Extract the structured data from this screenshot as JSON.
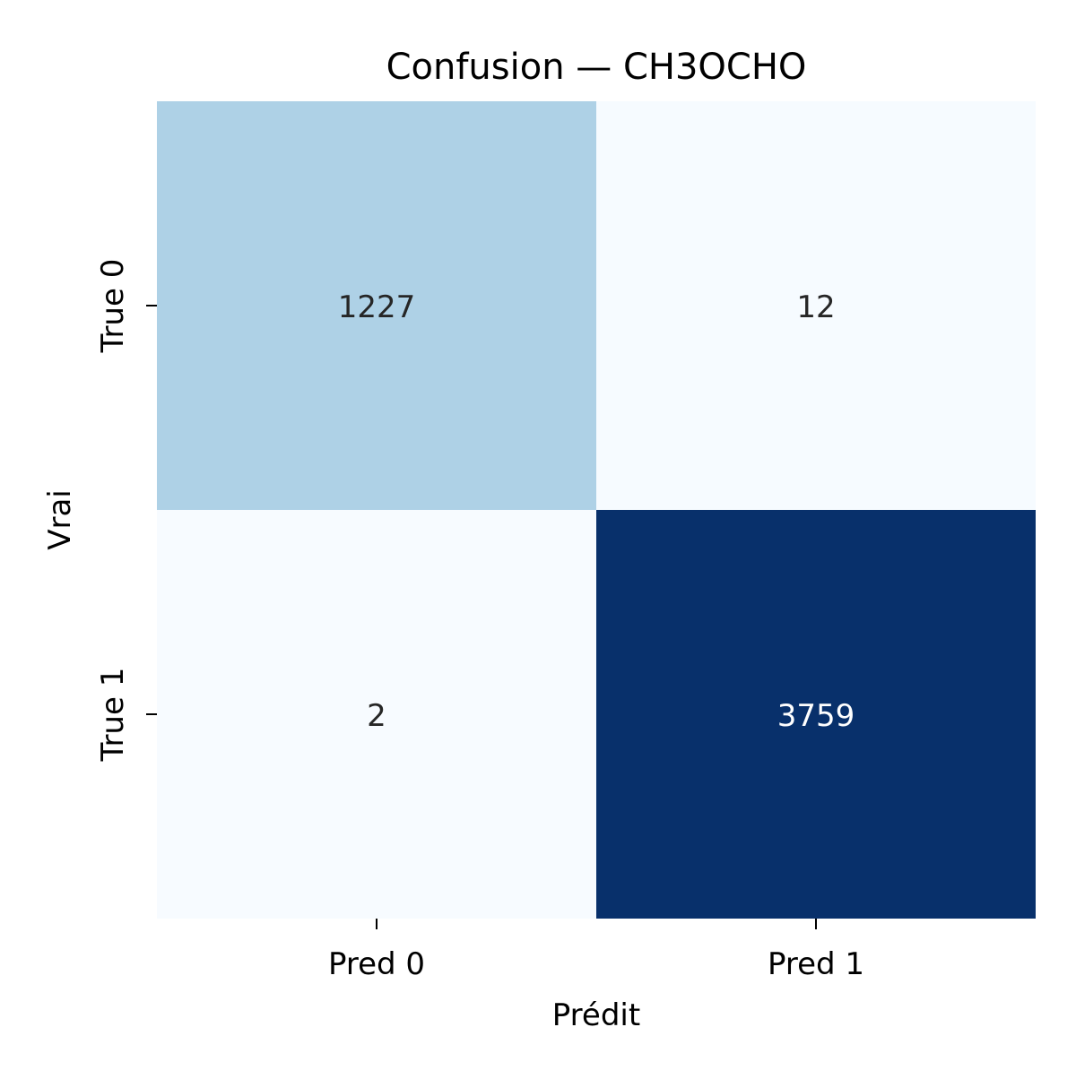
{
  "chart_data": {
    "type": "heatmap",
    "title": "Confusion — CH3OCHO",
    "xlabel": "Prédit",
    "ylabel": "Vrai",
    "x_categories": [
      "Pred 0",
      "Pred 1"
    ],
    "y_categories": [
      "True 0",
      "True 1"
    ],
    "values": [
      [
        1227,
        12
      ],
      [
        2,
        3759
      ]
    ],
    "colormap": "Blues",
    "colorbar": false,
    "colors": {
      "low": "#f7fbff",
      "mid": "#afd1e7",
      "high": "#08306b",
      "text_dark": "#262626",
      "text_light": "#ffffff"
    }
  }
}
